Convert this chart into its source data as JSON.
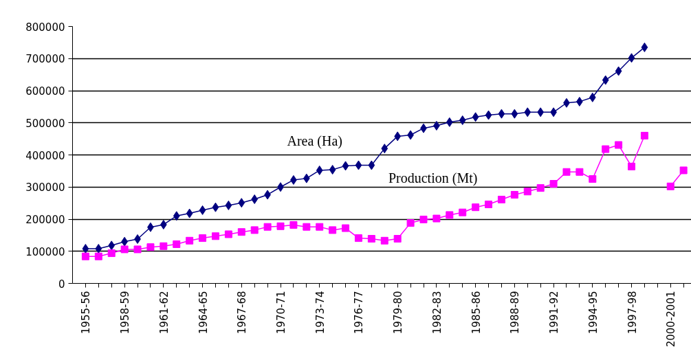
{
  "chart_data": {
    "type": "line",
    "categories": [
      "1955-56",
      null,
      null,
      "1958-59",
      null,
      null,
      "1961-62",
      null,
      null,
      "1964-65",
      null,
      null,
      "1967-68",
      null,
      null,
      "1970-71",
      null,
      null,
      "1973-74",
      null,
      null,
      "1976-77",
      null,
      null,
      "1979-80",
      null,
      null,
      "1982-83",
      null,
      null,
      "1985-86",
      null,
      null,
      "1988-89",
      null,
      null,
      "1991-92",
      null,
      null,
      "1994-95",
      null,
      null,
      "1997-98",
      null,
      null,
      "2000-2001",
      null
    ],
    "series": [
      {
        "name": "Area (Ha)",
        "color": "#000080",
        "marker": "diamond",
        "values": [
          108000,
          108000,
          118000,
          130000,
          138000,
          175000,
          183000,
          210000,
          218000,
          228000,
          237000,
          243000,
          251000,
          262000,
          276000,
          300000,
          322000,
          327000,
          352000,
          354000,
          366000,
          368000,
          368000,
          420000,
          458000,
          462000,
          483000,
          491000,
          502000,
          508000,
          518000,
          524000,
          528000,
          528000,
          533000,
          533000,
          533000,
          562000,
          566000,
          579000,
          633000,
          661000,
          702000,
          735000,
          null,
          null,
          null
        ]
      },
      {
        "name": "Production (Mt)",
        "color": "#ff00ff",
        "marker": "square",
        "values": [
          84000,
          84000,
          94000,
          106000,
          106000,
          113000,
          116000,
          122000,
          133000,
          141000,
          147000,
          153000,
          160000,
          166000,
          176000,
          178000,
          182000,
          176000,
          176000,
          166000,
          172000,
          141000,
          139000,
          133000,
          139000,
          188000,
          199000,
          202000,
          213000,
          221000,
          237000,
          246000,
          261000,
          276000,
          286000,
          297000,
          310000,
          347000,
          347000,
          325000,
          418000,
          431000,
          364000,
          460000,
          null,
          302000,
          352000
        ]
      }
    ],
    "ylim": [
      0,
      800000
    ],
    "yticks": [
      0,
      100000,
      200000,
      300000,
      400000,
      500000,
      600000,
      700000,
      800000
    ],
    "grid": "y",
    "line_style": "solid"
  }
}
